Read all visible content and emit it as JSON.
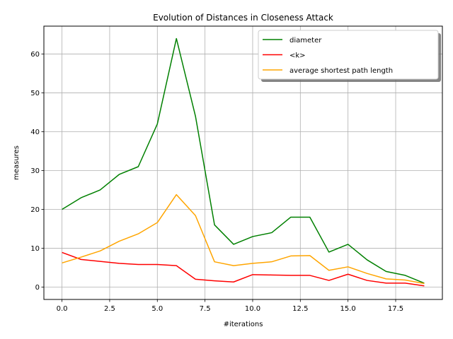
{
  "chart_data": {
    "type": "line",
    "title": "Evolution of Distances in Closeness Attack",
    "xlabel": "#iterations",
    "ylabel": "measures",
    "xlim": [
      -0.95,
      19.95
    ],
    "ylim": [
      -3.2,
      67.2
    ],
    "grid": true,
    "legend_position": "top-right",
    "x": [
      0,
      1,
      2,
      3,
      4,
      5,
      6,
      7,
      8,
      9,
      10,
      11,
      12,
      13,
      14,
      15,
      16,
      17,
      18,
      19
    ],
    "x_ticks": [
      "0.0",
      "2.5",
      "5.0",
      "7.5",
      "10.0",
      "12.5",
      "15.0",
      "17.5"
    ],
    "x_tick_values": [
      0,
      2.5,
      5,
      7.5,
      10,
      12.5,
      15,
      17.5
    ],
    "y_ticks": [
      "0",
      "10",
      "20",
      "30",
      "40",
      "50",
      "60"
    ],
    "y_tick_values": [
      0,
      10,
      20,
      30,
      40,
      50,
      60
    ],
    "series": [
      {
        "name": "diameter",
        "color": "#008000",
        "values": [
          20,
          23,
          25,
          29,
          31,
          42,
          64,
          44,
          16,
          11,
          13,
          14,
          18,
          18,
          9,
          11,
          7,
          4,
          3,
          1
        ]
      },
      {
        "name": "<k>",
        "color": "#ff0000",
        "values": [
          8.9,
          7.1,
          6.6,
          6.1,
          5.8,
          5.8,
          5.5,
          2.0,
          1.6,
          1.3,
          3.2,
          3.1,
          3.0,
          3.0,
          1.7,
          3.3,
          1.7,
          1.0,
          1.0,
          0.3
        ]
      },
      {
        "name": "average shortest path length",
        "color": "#ffa500",
        "values": [
          6.2,
          7.7,
          9.3,
          11.8,
          13.7,
          16.6,
          23.8,
          18.4,
          6.5,
          5.5,
          6.1,
          6.5,
          8.0,
          8.1,
          4.3,
          5.2,
          3.5,
          2.1,
          1.8,
          0.9
        ]
      }
    ]
  }
}
